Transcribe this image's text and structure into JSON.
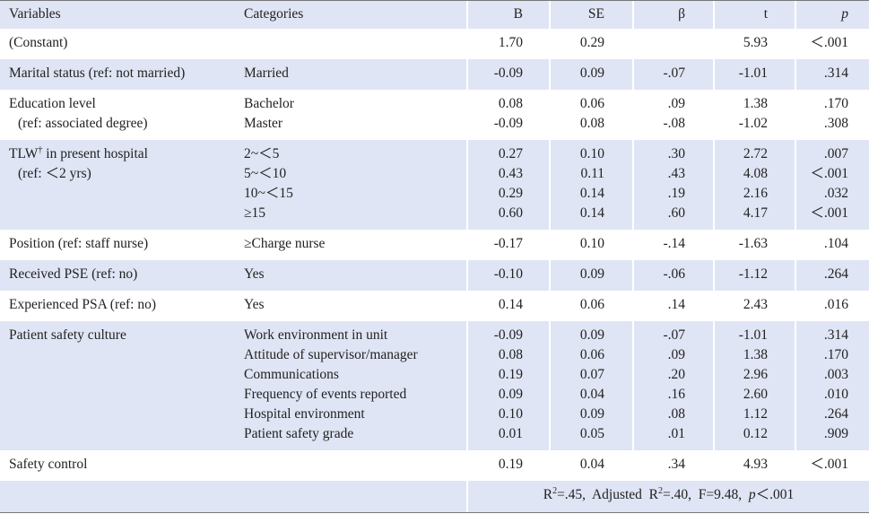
{
  "header": [
    "Variables",
    "Categories",
    "B",
    "SE",
    "β",
    "t",
    "p"
  ],
  "rows": [
    {
      "variable": [
        "(Constant)"
      ],
      "B": [
        "1.70"
      ],
      "SE": [
        "0.29"
      ],
      "t": [
        "5.93"
      ],
      "p": [
        "＜.001"
      ]
    },
    {
      "variable": [
        "Marital status (ref: not married)"
      ],
      "categories": [
        "Married"
      ],
      "B": [
        "-0.09"
      ],
      "SE": [
        "0.09"
      ],
      "beta": [
        "-.07"
      ],
      "t": [
        "-1.01"
      ],
      "p": [
        ".314"
      ]
    },
    {
      "variable": [
        "Education level",
        "(ref: associated degree)"
      ],
      "categories": [
        "Bachelor",
        "Master"
      ],
      "B": [
        "0.08",
        "-0.09"
      ],
      "SE": [
        "0.06",
        "0.08"
      ],
      "beta": [
        ".09",
        "-.08"
      ],
      "t": [
        "1.38",
        "-1.02"
      ],
      "p": [
        ".170",
        ".308"
      ]
    },
    {
      "variable": [
        [
          {
            "text": "TLW"
          },
          {
            "text": "†",
            "style": "sup"
          },
          {
            "text": " in present hospital"
          }
        ],
        "(ref: ＜2 yrs)"
      ],
      "categories": [
        "2~＜5",
        "5~＜10",
        "10~＜15",
        "≥15"
      ],
      "B": [
        "0.27",
        "0.43",
        "0.29",
        "0.60"
      ],
      "SE": [
        "0.10",
        "0.11",
        "0.14",
        "0.14"
      ],
      "beta": [
        ".30",
        ".43",
        ".19",
        ".60"
      ],
      "t": [
        "2.72",
        "4.08",
        "2.16",
        "4.17"
      ],
      "p": [
        ".007",
        "＜.001",
        ".032",
        "＜.001"
      ]
    },
    {
      "variable": [
        "Position (ref: staff nurse)"
      ],
      "categories": [
        "≥Charge nurse"
      ],
      "B": [
        "-0.17"
      ],
      "SE": [
        "0.10"
      ],
      "beta": [
        "-.14"
      ],
      "t": [
        "-1.63"
      ],
      "p": [
        ".104"
      ]
    },
    {
      "variable": [
        "Received PSE (ref: no)"
      ],
      "categories": [
        "Yes"
      ],
      "B": [
        "-0.10"
      ],
      "SE": [
        "0.09"
      ],
      "beta": [
        "-.06"
      ],
      "t": [
        "-1.12"
      ],
      "p": [
        ".264"
      ]
    },
    {
      "variable": [
        "Experienced PSA (ref: no)"
      ],
      "categories": [
        "Yes"
      ],
      "B": [
        "0.14"
      ],
      "SE": [
        "0.06"
      ],
      "beta": [
        ".14"
      ],
      "t": [
        "2.43"
      ],
      "p": [
        ".016"
      ]
    },
    {
      "variable": [
        "Patient safety culture"
      ],
      "categories": [
        "Work environment in unit",
        "Attitude of supervisor/manager",
        "Communications",
        "Frequency of events reported",
        "Hospital environment",
        "Patient safety grade"
      ],
      "B": [
        "-0.09",
        "0.08",
        "0.19",
        "0.09",
        "0.10",
        "0.01"
      ],
      "SE": [
        "0.09",
        "0.06",
        "0.07",
        "0.04",
        "0.09",
        "0.05"
      ],
      "beta": [
        "-.07",
        ".09",
        ".20",
        ".16",
        ".08",
        ".01"
      ],
      "t": [
        "-1.01",
        "1.38",
        "2.96",
        "2.60",
        "1.12",
        "0.12"
      ],
      "p": [
        ".314",
        ".170",
        ".003",
        ".010",
        ".264",
        ".909"
      ]
    },
    {
      "variable": [
        "Safety control"
      ],
      "B": [
        "0.19"
      ],
      "SE": [
        "0.04"
      ],
      "beta": [
        ".34"
      ],
      "t": [
        "4.93"
      ],
      "p": [
        "＜.001"
      ]
    }
  ],
  "footer": [
    {
      "text": "R"
    },
    {
      "text": "2",
      "style": "sup"
    },
    {
      "text": "=.45,  Adjusted  R"
    },
    {
      "text": "2",
      "style": "sup"
    },
    {
      "text": "=.40,  F=9.48,  "
    },
    {
      "text": "p",
      "style": "italic"
    },
    {
      "text": "＜.001"
    }
  ]
}
